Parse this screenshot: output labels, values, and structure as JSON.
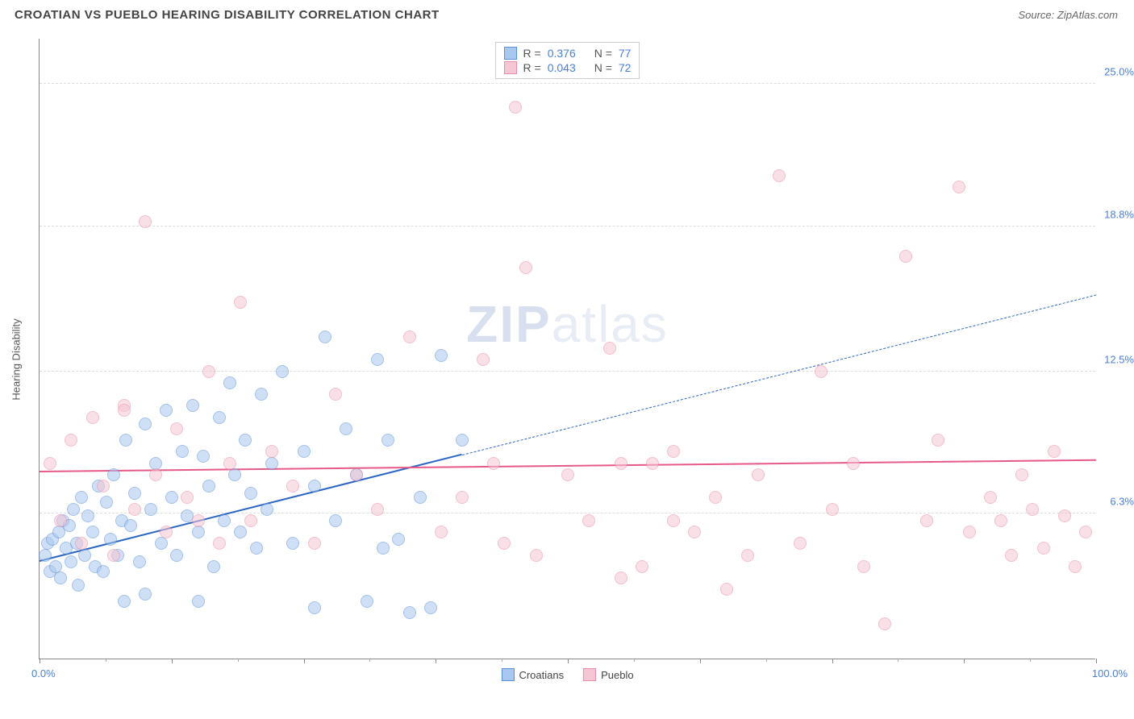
{
  "title": "CROATIAN VS PUEBLO HEARING DISABILITY CORRELATION CHART",
  "source_label": "Source: ZipAtlas.com",
  "y_axis_title": "Hearing Disability",
  "watermark_bold": "ZIP",
  "watermark_light": "atlas",
  "chart": {
    "type": "scatter",
    "xlim": [
      0,
      100
    ],
    "ylim": [
      0,
      27
    ],
    "x_label_min": "0.0%",
    "x_label_max": "100.0%",
    "y_ticks": [
      {
        "v": 6.3,
        "label": "6.3%"
      },
      {
        "v": 12.5,
        "label": "12.5%"
      },
      {
        "v": 18.8,
        "label": "18.8%"
      },
      {
        "v": 25.0,
        "label": "25.0%"
      }
    ],
    "x_major_ticks": [
      0,
      12.5,
      25,
      37.5,
      50,
      62.5,
      75,
      87.5,
      100
    ],
    "x_minor_ticks": [
      6.25,
      18.75,
      31.25,
      43.75,
      56.25,
      68.75,
      81.25,
      93.75
    ],
    "background_color": "#ffffff",
    "grid_color": "#dddddd",
    "marker_radius": 8,
    "marker_opacity": 0.55,
    "series": [
      {
        "name": "Croatians",
        "fill": "#a9c8ef",
        "stroke": "#5b8fd6",
        "r_value": "0.376",
        "n_value": "77",
        "trend": {
          "x1": 0,
          "y1": 4.2,
          "x2": 100,
          "y2": 15.8,
          "solid_until_x": 40,
          "color": "#2c66c4"
        },
        "points": [
          [
            0.5,
            4.5
          ],
          [
            0.8,
            5.0
          ],
          [
            1.0,
            3.8
          ],
          [
            1.2,
            5.2
          ],
          [
            1.5,
            4.0
          ],
          [
            1.8,
            5.5
          ],
          [
            2.0,
            3.5
          ],
          [
            2.2,
            6.0
          ],
          [
            2.5,
            4.8
          ],
          [
            2.8,
            5.8
          ],
          [
            3.0,
            4.2
          ],
          [
            3.2,
            6.5
          ],
          [
            3.5,
            5.0
          ],
          [
            3.7,
            3.2
          ],
          [
            4.0,
            7.0
          ],
          [
            4.3,
            4.5
          ],
          [
            4.6,
            6.2
          ],
          [
            5.0,
            5.5
          ],
          [
            5.3,
            4.0
          ],
          [
            5.6,
            7.5
          ],
          [
            6.0,
            3.8
          ],
          [
            6.3,
            6.8
          ],
          [
            6.7,
            5.2
          ],
          [
            7.0,
            8.0
          ],
          [
            7.4,
            4.5
          ],
          [
            7.8,
            6.0
          ],
          [
            8.2,
            9.5
          ],
          [
            8.6,
            5.8
          ],
          [
            9.0,
            7.2
          ],
          [
            9.5,
            4.2
          ],
          [
            10.0,
            10.2
          ],
          [
            10.5,
            6.5
          ],
          [
            11.0,
            8.5
          ],
          [
            11.5,
            5.0
          ],
          [
            12.0,
            10.8
          ],
          [
            12.5,
            7.0
          ],
          [
            13.0,
            4.5
          ],
          [
            13.5,
            9.0
          ],
          [
            14.0,
            6.2
          ],
          [
            14.5,
            11.0
          ],
          [
            15.0,
            5.5
          ],
          [
            15.5,
            8.8
          ],
          [
            16.0,
            7.5
          ],
          [
            16.5,
            4.0
          ],
          [
            17.0,
            10.5
          ],
          [
            17.5,
            6.0
          ],
          [
            18.0,
            12.0
          ],
          [
            18.5,
            8.0
          ],
          [
            19.0,
            5.5
          ],
          [
            19.5,
            9.5
          ],
          [
            20.0,
            7.2
          ],
          [
            20.5,
            4.8
          ],
          [
            21.0,
            11.5
          ],
          [
            21.5,
            6.5
          ],
          [
            22.0,
            8.5
          ],
          [
            23.0,
            12.5
          ],
          [
            24.0,
            5.0
          ],
          [
            25.0,
            9.0
          ],
          [
            26.0,
            7.5
          ],
          [
            27.0,
            14.0
          ],
          [
            28.0,
            6.0
          ],
          [
            29.0,
            10.0
          ],
          [
            30.0,
            8.0
          ],
          [
            31.0,
            2.5
          ],
          [
            32.0,
            13.0
          ],
          [
            33.0,
            9.5
          ],
          [
            35.0,
            2.0
          ],
          [
            36.0,
            7.0
          ],
          [
            38.0,
            13.2
          ],
          [
            40.0,
            9.5
          ],
          [
            37.0,
            2.2
          ],
          [
            15.0,
            2.5
          ],
          [
            10.0,
            2.8
          ],
          [
            8.0,
            2.5
          ],
          [
            26.0,
            2.2
          ],
          [
            32.5,
            4.8
          ],
          [
            34.0,
            5.2
          ]
        ]
      },
      {
        "name": "Pueblo",
        "fill": "#f5c6d3",
        "stroke": "#e88ca8",
        "r_value": "0.043",
        "n_value": "72",
        "trend": {
          "x1": 0,
          "y1": 8.1,
          "x2": 100,
          "y2": 8.6,
          "solid_until_x": 100,
          "color": "#e65a8a"
        },
        "points": [
          [
            1,
            8.5
          ],
          [
            2,
            6.0
          ],
          [
            3,
            9.5
          ],
          [
            4,
            5.0
          ],
          [
            5,
            10.5
          ],
          [
            6,
            7.5
          ],
          [
            7,
            4.5
          ],
          [
            8,
            11.0
          ],
          [
            9,
            6.5
          ],
          [
            10,
            19.0
          ],
          [
            11,
            8.0
          ],
          [
            12,
            5.5
          ],
          [
            13,
            10.0
          ],
          [
            14,
            7.0
          ],
          [
            15,
            6.0
          ],
          [
            16,
            12.5
          ],
          [
            17,
            5.0
          ],
          [
            18,
            8.5
          ],
          [
            19,
            15.5
          ],
          [
            20,
            6.0
          ],
          [
            22,
            9.0
          ],
          [
            24,
            7.5
          ],
          [
            26,
            5.0
          ],
          [
            28,
            11.5
          ],
          [
            30,
            8.0
          ],
          [
            32,
            6.5
          ],
          [
            35,
            14.0
          ],
          [
            38,
            5.5
          ],
          [
            40,
            7.0
          ],
          [
            42,
            13.0
          ],
          [
            43,
            8.5
          ],
          [
            44,
            5.0
          ],
          [
            45,
            24.0
          ],
          [
            46,
            17.0
          ],
          [
            47,
            4.5
          ],
          [
            50,
            8.0
          ],
          [
            52,
            6.0
          ],
          [
            54,
            13.5
          ],
          [
            55,
            3.5
          ],
          [
            57,
            4.0
          ],
          [
            58,
            8.5
          ],
          [
            60,
            9.0
          ],
          [
            62,
            5.5
          ],
          [
            64,
            7.0
          ],
          [
            65,
            3.0
          ],
          [
            67,
            4.5
          ],
          [
            68,
            8.0
          ],
          [
            70,
            21.0
          ],
          [
            72,
            5.0
          ],
          [
            74,
            12.5
          ],
          [
            75,
            6.5
          ],
          [
            77,
            8.5
          ],
          [
            78,
            4.0
          ],
          [
            80,
            1.5
          ],
          [
            82,
            17.5
          ],
          [
            84,
            6.0
          ],
          [
            85,
            9.5
          ],
          [
            87,
            20.5
          ],
          [
            88,
            5.5
          ],
          [
            90,
            7.0
          ],
          [
            91,
            6.0
          ],
          [
            92,
            4.5
          ],
          [
            93,
            8.0
          ],
          [
            94,
            6.5
          ],
          [
            95,
            4.8
          ],
          [
            96,
            9.0
          ],
          [
            97,
            6.2
          ],
          [
            98,
            4.0
          ],
          [
            99,
            5.5
          ],
          [
            8,
            10.8
          ],
          [
            55,
            8.5
          ],
          [
            60,
            6.0
          ]
        ]
      }
    ],
    "stats_labels": {
      "r": "R  =",
      "n": "N  ="
    },
    "legend_labels": [
      "Croatians",
      "Pueblo"
    ]
  }
}
